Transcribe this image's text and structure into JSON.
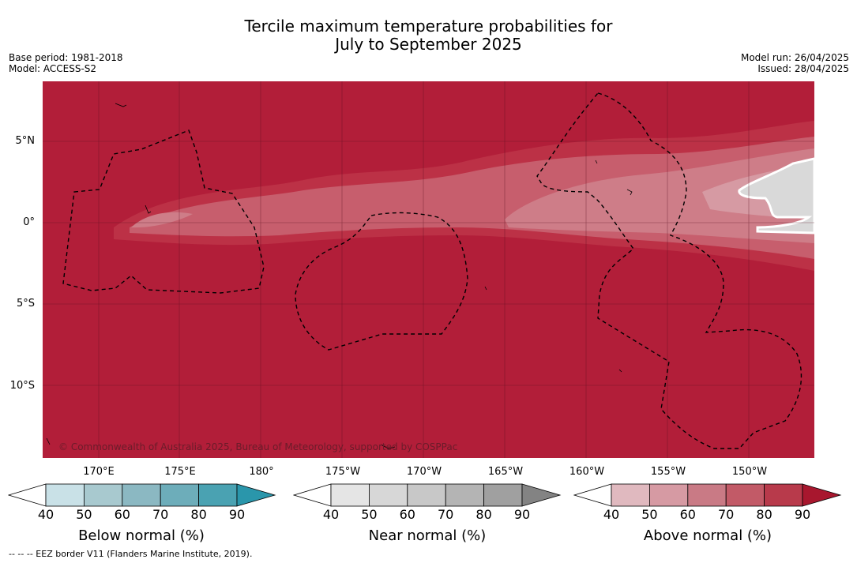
{
  "title": {
    "line1": "Tercile maximum temperature probabilities for",
    "line2": "July to September 2025"
  },
  "meta_left": {
    "base_period": "Base period: 1981-2018",
    "model": "Model: ACCESS-S2"
  },
  "meta_right": {
    "model_run": "Model run: 26/04/2025",
    "issued": "Issued: 28/04/2025"
  },
  "map": {
    "y_axis_labels": [
      "5°N",
      "0°",
      "5°S",
      "10°S"
    ],
    "x_axis_labels": [
      "170°E",
      "175°E",
      "180°",
      "175°W",
      "170°W",
      "165°W",
      "160°W",
      "155°W",
      "150°W"
    ],
    "copyright": "© Commonwealth of Australia 2025, Bureau of Meteorology, supported by COSPPac",
    "colors": {
      "above_90": "#b21e39",
      "above_80": "#bc3146",
      "above_70": "#c75e6d",
      "above_60": "#ce7d88",
      "above_50": "#d69aa3",
      "near_50": "#d9d9d9",
      "grid": "#5a1020",
      "eez": "#000000"
    }
  },
  "colorbars": [
    {
      "title": "Below normal (%)",
      "ticks": [
        "40",
        "50",
        "60",
        "70",
        "80",
        "90"
      ],
      "colors": [
        "#ffffff",
        "#c9e1e7",
        "#a8c9cf",
        "#8bb8c2",
        "#6dadba",
        "#4aa2b2",
        "#2a96ab"
      ]
    },
    {
      "title": "Near normal (%)",
      "ticks": [
        "40",
        "50",
        "60",
        "70",
        "80",
        "90"
      ],
      "colors": [
        "#ffffff",
        "#e5e5e5",
        "#d7d7d7",
        "#c8c8c8",
        "#b4b4b4",
        "#a0a0a0",
        "#838383"
      ]
    },
    {
      "title": "Above normal (%)",
      "ticks": [
        "40",
        "50",
        "60",
        "70",
        "80",
        "90"
      ],
      "colors": [
        "#ffffff",
        "#e0b9bf",
        "#d69aa3",
        "#c97a85",
        "#c25a67",
        "#b83a4b",
        "#a8172e"
      ]
    }
  ],
  "footnote": "--  --  -- EEZ border V11 (Flanders Marine Institute, 2019)."
}
